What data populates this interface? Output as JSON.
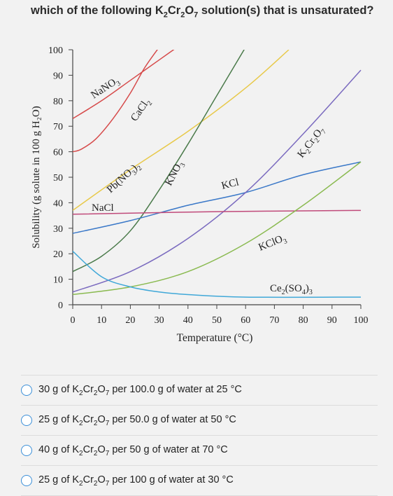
{
  "question": {
    "prefix": "which of the following ",
    "formula": [
      "K",
      "2",
      "Cr",
      "2",
      "O",
      "7"
    ],
    "suffix": " solution(s) that is unsaturated?"
  },
  "chart_data": {
    "type": "line",
    "title": "",
    "xlabel": "Temperature (°C)",
    "ylabel": "Solubility (g solute in 100 g H₂O)",
    "xlim": [
      0,
      100
    ],
    "ylim": [
      0,
      100
    ],
    "x_ticks": [
      0,
      10,
      20,
      30,
      40,
      50,
      60,
      70,
      80,
      90,
      100
    ],
    "y_ticks": [
      0,
      10,
      20,
      30,
      40,
      50,
      60,
      70,
      80,
      90,
      100
    ],
    "grid": false,
    "series": [
      {
        "name": "NaNO3",
        "color": "#d64a4a",
        "x": [
          0,
          10,
          20,
          30,
          40
        ],
        "y": [
          73,
          80,
          88,
          96,
          104
        ]
      },
      {
        "name": "CaCl2",
        "color": "#d64a4a",
        "x": [
          0,
          3,
          8,
          14,
          20,
          25,
          30
        ],
        "y": [
          60,
          61,
          65,
          73,
          83,
          93,
          101
        ]
      },
      {
        "name": "Pb(NO3)2",
        "color": "#e8c94a",
        "x": [
          0,
          20,
          40,
          60,
          75
        ],
        "y": [
          37,
          53,
          68,
          85,
          100
        ]
      },
      {
        "name": "KNO3",
        "color": "#4a7a4a",
        "x": [
          0,
          10,
          20,
          30,
          40,
          50,
          60
        ],
        "y": [
          13,
          19,
          29,
          45,
          63,
          82,
          101
        ]
      },
      {
        "name": "KCl",
        "color": "#3a78c8",
        "x": [
          0,
          20,
          40,
          60,
          80,
          100
        ],
        "y": [
          28,
          33,
          39,
          44,
          51,
          56
        ]
      },
      {
        "name": "K2Cr2O7",
        "color": "#7a6abf",
        "x": [
          0,
          20,
          40,
          60,
          80,
          100
        ],
        "y": [
          5,
          13,
          26,
          44,
          67,
          92
        ]
      },
      {
        "name": "NaCl",
        "color": "#c04a7a",
        "x": [
          0,
          50,
          100
        ],
        "y": [
          35.5,
          36.5,
          37
        ]
      },
      {
        "name": "KClO3",
        "color": "#8aba50",
        "x": [
          0,
          20,
          40,
          60,
          80,
          100
        ],
        "y": [
          4,
          7,
          13,
          24,
          39,
          56
        ]
      },
      {
        "name": "Ce2(SO4)3",
        "color": "#40a8d8",
        "x": [
          0,
          10,
          20,
          30,
          40,
          60,
          100
        ],
        "y": [
          21,
          11,
          7,
          5,
          4,
          3,
          3
        ]
      }
    ],
    "labels": {
      "NaNO3": {
        "parts": [
          "NaNO",
          "3"
        ]
      },
      "CaCl2": {
        "parts": [
          "CaCl",
          "2"
        ]
      },
      "Pb(NO3)2": {
        "parts": [
          "Pb(NO",
          "3",
          ")",
          "2"
        ]
      },
      "KNO3": {
        "parts": [
          "KNO",
          "3"
        ]
      },
      "KCl": {
        "parts": [
          "KCl"
        ]
      },
      "K2Cr2O7": {
        "parts": [
          "K",
          "2",
          "Cr",
          "2",
          "O",
          "7"
        ]
      },
      "NaCl": {
        "parts": [
          "NaCl"
        ]
      },
      "KClO3": {
        "parts": [
          "KClO",
          "3"
        ]
      },
      "Ce2(SO4)3": {
        "parts": [
          "Ce",
          "2",
          "(SO",
          "4",
          ")",
          "3"
        ]
      }
    }
  },
  "options": [
    {
      "pre": "30 g of ",
      "post": " per 100.0 g of water at 25 °C"
    },
    {
      "pre": "25 g of ",
      "post": " per 50.0 g of water at 50 °C"
    },
    {
      "pre": "40 g of ",
      "post": " per 50 g of water at 70 °C"
    },
    {
      "pre": "25 g of ",
      "post": " per 100 g of water at 30 °C"
    }
  ]
}
